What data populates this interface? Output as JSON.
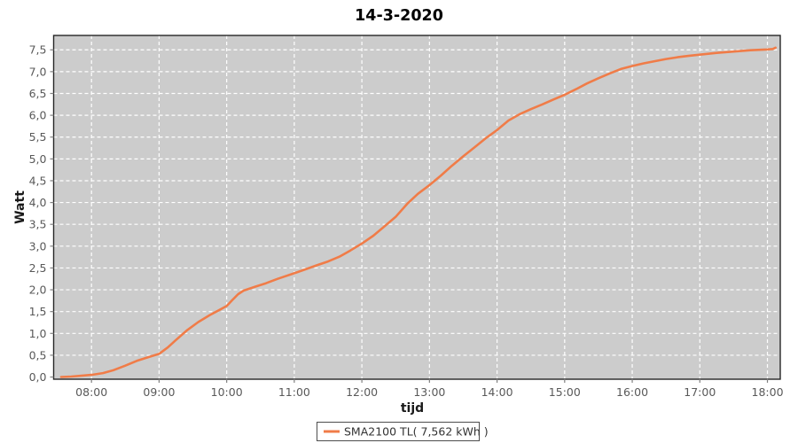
{
  "page": {
    "background": "#ffffff"
  },
  "colors": {
    "plot_background": "#cccccc",
    "gridline": "#ffffff",
    "series_line": "#f07c48",
    "axis_outline": "#262626",
    "tick_mark": "#808080",
    "tick_text": "#595959",
    "legend_border": "#4d4d4d",
    "legend_background": "#ffffff"
  },
  "legend": {
    "label": "SMA2100 TL( 7,562 kWh )"
  },
  "chart_data": {
    "type": "line",
    "title": "14-3-2020",
    "xlabel": "tijd",
    "ylabel": "Watt",
    "grid": "white dashed, horizontal every 0.5 and vertical every hour",
    "legend_position": "bottom-center",
    "xlim": [
      7.44,
      18.19
    ],
    "ylim": [
      -0.05,
      7.83
    ],
    "x_ticks": [
      8,
      9,
      10,
      11,
      12,
      13,
      14,
      15,
      16,
      17,
      18
    ],
    "x_tick_labels": [
      "08:00",
      "09:00",
      "10:00",
      "11:00",
      "12:00",
      "13:00",
      "14:00",
      "15:00",
      "16:00",
      "17:00",
      "18:00"
    ],
    "y_ticks": [
      0,
      0.5,
      1.0,
      1.5,
      2.0,
      2.5,
      3.0,
      3.5,
      4.0,
      4.5,
      5.0,
      5.5,
      6.0,
      6.5,
      7.0,
      7.5
    ],
    "y_tick_labels": [
      "0,0",
      "0,5",
      "1,0",
      "1,5",
      "2,0",
      "2,5",
      "3,0",
      "3,5",
      "4,0",
      "4,5",
      "5,0",
      "5,5",
      "6,0",
      "6,5",
      "7,0",
      "7,5"
    ],
    "series": [
      {
        "name": "SMA2100 TL( 7,562 kWh )",
        "color": "#f07c48",
        "total_kwh_label": "7,562 kWh",
        "points": [
          [
            7.55,
            0.0
          ],
          [
            7.7,
            0.01
          ],
          [
            7.85,
            0.03
          ],
          [
            8.0,
            0.05
          ],
          [
            8.17,
            0.09
          ],
          [
            8.33,
            0.16
          ],
          [
            8.5,
            0.26
          ],
          [
            8.67,
            0.37
          ],
          [
            8.83,
            0.45
          ],
          [
            9.0,
            0.53
          ],
          [
            9.13,
            0.68
          ],
          [
            9.25,
            0.85
          ],
          [
            9.42,
            1.08
          ],
          [
            9.58,
            1.26
          ],
          [
            9.75,
            1.42
          ],
          [
            9.92,
            1.56
          ],
          [
            10.0,
            1.63
          ],
          [
            10.08,
            1.76
          ],
          [
            10.17,
            1.9
          ],
          [
            10.25,
            1.98
          ],
          [
            10.42,
            2.07
          ],
          [
            10.58,
            2.15
          ],
          [
            10.75,
            2.25
          ],
          [
            11.0,
            2.38
          ],
          [
            11.17,
            2.47
          ],
          [
            11.33,
            2.56
          ],
          [
            11.5,
            2.65
          ],
          [
            11.67,
            2.76
          ],
          [
            11.83,
            2.9
          ],
          [
            12.0,
            3.06
          ],
          [
            12.17,
            3.24
          ],
          [
            12.33,
            3.45
          ],
          [
            12.5,
            3.67
          ],
          [
            12.67,
            3.97
          ],
          [
            12.83,
            4.2
          ],
          [
            13.0,
            4.4
          ],
          [
            13.17,
            4.62
          ],
          [
            13.33,
            4.84
          ],
          [
            13.5,
            5.06
          ],
          [
            13.67,
            5.27
          ],
          [
            13.83,
            5.47
          ],
          [
            14.0,
            5.66
          ],
          [
            14.17,
            5.88
          ],
          [
            14.33,
            6.02
          ],
          [
            14.5,
            6.14
          ],
          [
            14.67,
            6.25
          ],
          [
            14.83,
            6.36
          ],
          [
            15.0,
            6.47
          ],
          [
            15.17,
            6.6
          ],
          [
            15.33,
            6.73
          ],
          [
            15.5,
            6.85
          ],
          [
            15.67,
            6.96
          ],
          [
            15.83,
            7.06
          ],
          [
            16.0,
            7.13
          ],
          [
            16.17,
            7.19
          ],
          [
            16.33,
            7.24
          ],
          [
            16.5,
            7.29
          ],
          [
            16.67,
            7.33
          ],
          [
            16.83,
            7.36
          ],
          [
            17.0,
            7.39
          ],
          [
            17.25,
            7.43
          ],
          [
            17.5,
            7.46
          ],
          [
            17.75,
            7.49
          ],
          [
            18.0,
            7.51
          ],
          [
            18.08,
            7.52
          ],
          [
            18.12,
            7.55
          ]
        ]
      }
    ]
  }
}
